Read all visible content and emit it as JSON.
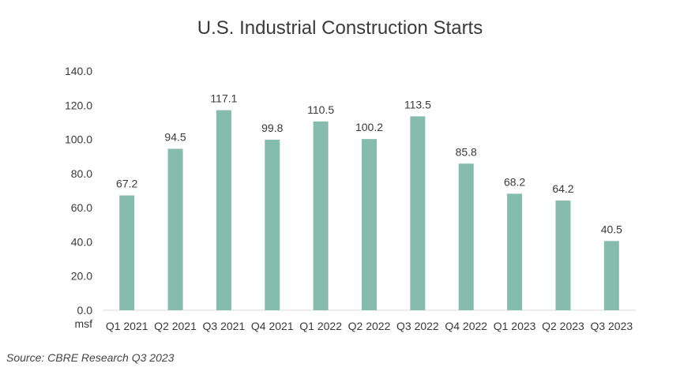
{
  "colors": {
    "bar": "#86bcad",
    "text": "#3a3a3a",
    "axis": "#d9d9d9"
  },
  "chart_data": {
    "type": "bar",
    "title": "U.S. Industrial Construction Starts",
    "ylabel": "msf",
    "categories": [
      "Q1 2021",
      "Q2 2021",
      "Q3 2021",
      "Q4 2021",
      "Q1 2022",
      "Q2 2022",
      "Q3 2022",
      "Q4 2022",
      "Q1 2023",
      "Q2 2023",
      "Q3 2023"
    ],
    "values": [
      67.2,
      94.5,
      117.1,
      99.8,
      110.5,
      100.2,
      113.5,
      85.8,
      68.2,
      64.2,
      40.5
    ],
    "data_labels": [
      "67.2",
      "94.5",
      "117.1",
      "99.8",
      "110.5",
      "100.2",
      "113.5",
      "85.8",
      "68.2",
      "64.2",
      "40.5"
    ],
    "yticks": [
      "0.0",
      "20.0",
      "40.0",
      "60.0",
      "80.0",
      "100.0",
      "120.0",
      "140.0"
    ],
    "ylim": [
      0,
      140
    ],
    "grid": false,
    "legend": "none"
  },
  "source": "Source: CBRE Research Q3 2023"
}
